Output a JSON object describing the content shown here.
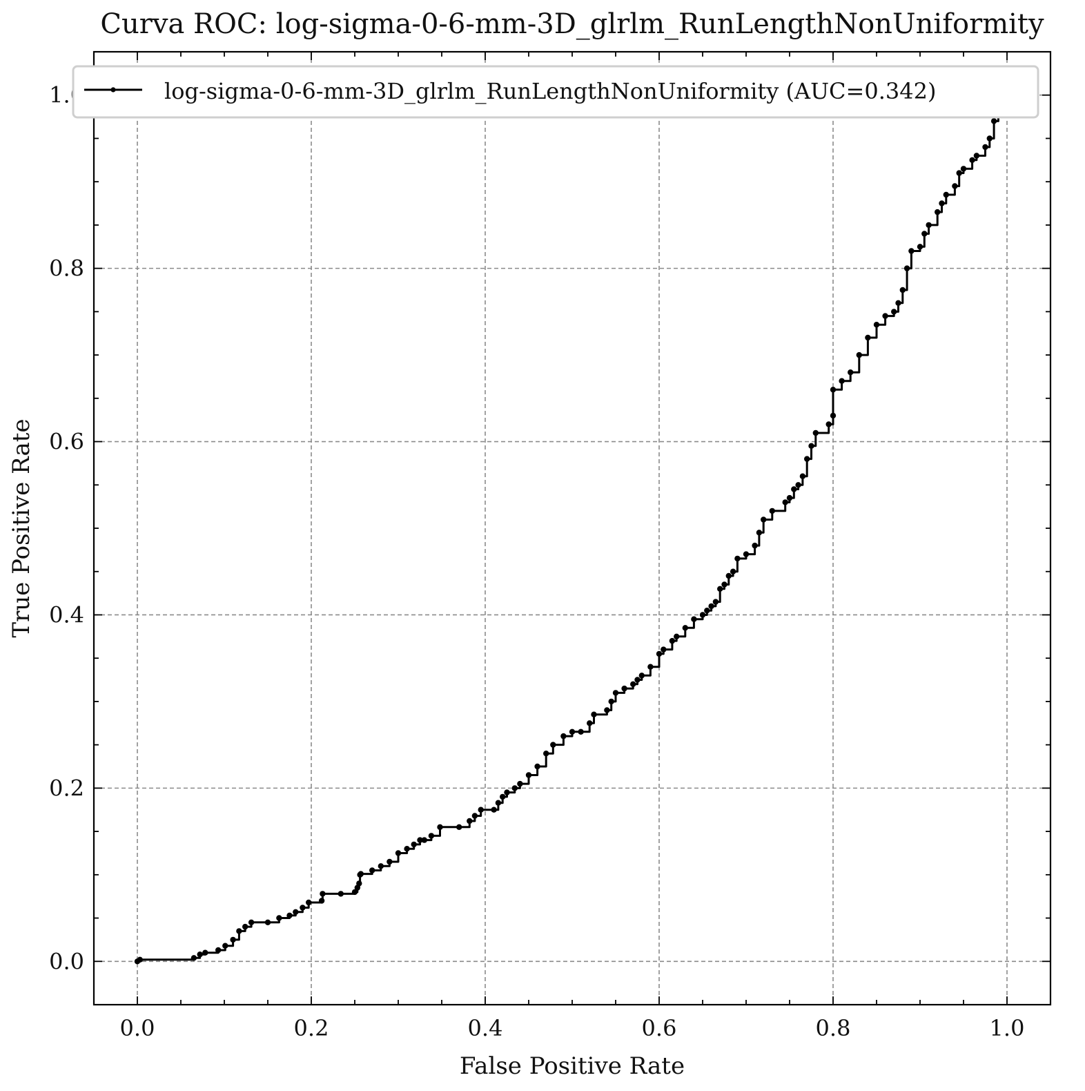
{
  "chart_data": {
    "type": "line",
    "title": "Curva ROC: log-sigma-0-6-mm-3D_glrlm_RunLengthNonUniformity",
    "xlabel": "False Positive Rate",
    "ylabel": "True Positive Rate",
    "xlim": [
      -0.05,
      1.05
    ],
    "ylim": [
      -0.05,
      1.05
    ],
    "xticks": [
      0.0,
      0.2,
      0.4,
      0.6,
      0.8,
      1.0
    ],
    "yticks": [
      0.0,
      0.2,
      0.4,
      0.6,
      0.8,
      1.0
    ],
    "xtick_labels": [
      "0.0",
      "0.2",
      "0.4",
      "0.6",
      "0.8",
      "1.0"
    ],
    "ytick_labels": [
      "0.0",
      "0.2",
      "0.4",
      "0.6",
      "0.8",
      "1.0"
    ],
    "grid": true,
    "legend_position": "top",
    "series": [
      {
        "name": "log-sigma-0-6-mm-3D_glrlm_RunLengthNonUniformity (AUC=0.342)",
        "color": "#000000",
        "marker": "dot",
        "x": [
          0.0,
          0.003,
          0.065,
          0.072,
          0.078,
          0.093,
          0.101,
          0.11,
          0.117,
          0.124,
          0.131,
          0.15,
          0.163,
          0.175,
          0.182,
          0.19,
          0.197,
          0.212,
          0.213,
          0.234,
          0.25,
          0.253,
          0.255,
          0.256,
          0.257,
          0.27,
          0.28,
          0.29,
          0.3,
          0.31,
          0.318,
          0.325,
          0.33,
          0.338,
          0.348,
          0.37,
          0.382,
          0.388,
          0.395,
          0.41,
          0.415,
          0.42,
          0.425,
          0.434,
          0.44,
          0.45,
          0.46,
          0.47,
          0.478,
          0.49,
          0.5,
          0.51,
          0.52,
          0.525,
          0.54,
          0.545,
          0.55,
          0.56,
          0.57,
          0.575,
          0.58,
          0.59,
          0.6,
          0.605,
          0.615,
          0.62,
          0.63,
          0.64,
          0.65,
          0.655,
          0.66,
          0.665,
          0.67,
          0.675,
          0.68,
          0.685,
          0.69,
          0.7,
          0.71,
          0.715,
          0.72,
          0.73,
          0.745,
          0.75,
          0.755,
          0.76,
          0.765,
          0.77,
          0.775,
          0.78,
          0.795,
          0.8,
          0.8,
          0.81,
          0.82,
          0.83,
          0.84,
          0.85,
          0.86,
          0.87,
          0.875,
          0.88,
          0.885,
          0.89,
          0.9,
          0.905,
          0.91,
          0.92,
          0.925,
          0.93,
          0.94,
          0.945,
          0.95,
          0.96,
          0.965,
          0.975,
          0.98,
          0.985,
          0.99
        ],
        "y": [
          0.0,
          0.002,
          0.004,
          0.008,
          0.01,
          0.013,
          0.018,
          0.025,
          0.035,
          0.04,
          0.045,
          0.045,
          0.05,
          0.053,
          0.057,
          0.062,
          0.068,
          0.07,
          0.078,
          0.078,
          0.08,
          0.085,
          0.09,
          0.1,
          0.101,
          0.105,
          0.11,
          0.115,
          0.125,
          0.13,
          0.135,
          0.14,
          0.14,
          0.145,
          0.155,
          0.155,
          0.162,
          0.168,
          0.175,
          0.175,
          0.183,
          0.19,
          0.195,
          0.2,
          0.205,
          0.215,
          0.225,
          0.24,
          0.25,
          0.26,
          0.265,
          0.265,
          0.275,
          0.285,
          0.29,
          0.3,
          0.31,
          0.315,
          0.32,
          0.325,
          0.33,
          0.34,
          0.355,
          0.36,
          0.37,
          0.375,
          0.385,
          0.395,
          0.4,
          0.405,
          0.41,
          0.415,
          0.43,
          0.435,
          0.445,
          0.45,
          0.465,
          0.47,
          0.48,
          0.495,
          0.51,
          0.52,
          0.53,
          0.535,
          0.545,
          0.55,
          0.56,
          0.58,
          0.595,
          0.61,
          0.62,
          0.63,
          0.66,
          0.67,
          0.68,
          0.7,
          0.72,
          0.735,
          0.745,
          0.75,
          0.76,
          0.775,
          0.8,
          0.82,
          0.825,
          0.84,
          0.85,
          0.865,
          0.875,
          0.885,
          0.895,
          0.91,
          0.915,
          0.925,
          0.93,
          0.94,
          0.95,
          0.97,
          1.0
        ]
      }
    ]
  }
}
